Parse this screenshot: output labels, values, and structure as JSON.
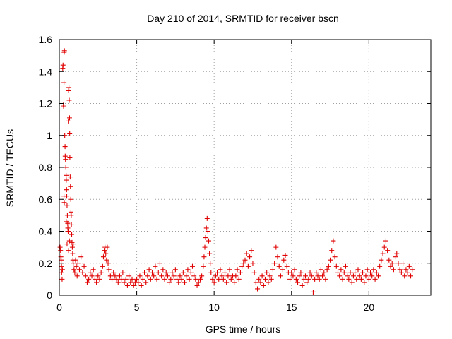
{
  "chart_data": {
    "type": "scatter",
    "title": "Day 210 of 2014, SRMTID for receiver bscn",
    "xlabel": "GPS time / hours",
    "ylabel": "SRMTID / TECUs",
    "xlim": [
      0,
      24
    ],
    "ylim": [
      0,
      1.6
    ],
    "x_ticks": [
      0,
      5,
      10,
      15,
      20
    ],
    "x_tick_labels": [
      "0",
      "5",
      "10",
      "15",
      "20"
    ],
    "y_ticks": [
      0,
      0.2,
      0.4,
      0.6,
      0.8,
      1.0,
      1.2,
      1.4,
      1.6
    ],
    "y_tick_labels": [
      "0",
      "0.2",
      "0.4",
      "0.6",
      "0.8",
      "1",
      "1.2",
      "1.4",
      "1.6"
    ],
    "grid": true,
    "marker": "+",
    "color": "#e00000",
    "series": [
      {
        "name": "SRMTID",
        "points": [
          [
            0.05,
            0.3
          ],
          [
            0.08,
            0.28
          ],
          [
            0.1,
            0.24
          ],
          [
            0.12,
            0.22
          ],
          [
            0.14,
            0.18
          ],
          [
            0.15,
            0.14
          ],
          [
            0.18,
            0.1
          ],
          [
            0.2,
            0.16
          ],
          [
            0.22,
            1.42
          ],
          [
            0.24,
            1.44
          ],
          [
            0.26,
            1.19
          ],
          [
            0.28,
            1.18
          ],
          [
            0.3,
            1.33
          ],
          [
            0.31,
            1.52
          ],
          [
            0.33,
            1.53
          ],
          [
            0.35,
            1.0
          ],
          [
            0.37,
            0.93
          ],
          [
            0.38,
            0.87
          ],
          [
            0.4,
            0.85
          ],
          [
            0.42,
            0.8
          ],
          [
            0.44,
            0.75
          ],
          [
            0.45,
            0.72
          ],
          [
            0.47,
            0.66
          ],
          [
            0.48,
            0.62
          ],
          [
            0.5,
            0.56
          ],
          [
            0.52,
            0.5
          ],
          [
            0.54,
            0.45
          ],
          [
            0.55,
            0.42
          ],
          [
            0.57,
            0.4
          ],
          [
            0.58,
            1.09
          ],
          [
            0.6,
            1.28
          ],
          [
            0.62,
            1.3
          ],
          [
            0.64,
            1.22
          ],
          [
            0.66,
            1.11
          ],
          [
            0.67,
            1.01
          ],
          [
            0.68,
            0.86
          ],
          [
            0.7,
            0.74
          ],
          [
            0.72,
            0.68
          ],
          [
            0.74,
            0.6
          ],
          [
            0.75,
            0.52
          ],
          [
            0.77,
            0.5
          ],
          [
            0.78,
            0.44
          ],
          [
            0.8,
            0.38
          ],
          [
            0.82,
            0.33
          ],
          [
            0.84,
            0.3
          ],
          [
            0.86,
            0.26
          ],
          [
            0.88,
            0.22
          ],
          [
            0.9,
            0.2
          ],
          [
            0.95,
            0.16
          ],
          [
            1.0,
            0.14
          ],
          [
            0.3,
            0.62
          ],
          [
            0.32,
            0.58
          ],
          [
            0.45,
            0.46
          ],
          [
            0.5,
            0.32
          ],
          [
            0.6,
            0.28
          ],
          [
            0.65,
            0.34
          ],
          [
            0.9,
            0.32
          ],
          [
            1.05,
            0.22
          ],
          [
            1.1,
            0.18
          ],
          [
            1.15,
            0.12
          ],
          [
            1.2,
            0.2
          ],
          [
            1.3,
            0.16
          ],
          [
            1.4,
            0.24
          ],
          [
            1.5,
            0.14
          ],
          [
            1.6,
            0.18
          ],
          [
            1.7,
            0.12
          ],
          [
            1.8,
            0.08
          ],
          [
            1.9,
            0.1
          ],
          [
            2.0,
            0.14
          ],
          [
            2.1,
            0.12
          ],
          [
            2.2,
            0.16
          ],
          [
            2.3,
            0.1
          ],
          [
            2.4,
            0.08
          ],
          [
            2.5,
            0.12
          ],
          [
            2.6,
            0.1
          ],
          [
            2.7,
            0.14
          ],
          [
            2.8,
            0.18
          ],
          [
            2.85,
            0.24
          ],
          [
            2.9,
            0.28
          ],
          [
            2.95,
            0.3
          ],
          [
            3.0,
            0.26
          ],
          [
            3.05,
            0.22
          ],
          [
            3.1,
            0.3
          ],
          [
            3.15,
            0.2
          ],
          [
            3.2,
            0.16
          ],
          [
            3.3,
            0.12
          ],
          [
            3.4,
            0.1
          ],
          [
            3.5,
            0.14
          ],
          [
            3.6,
            0.12
          ],
          [
            3.7,
            0.1
          ],
          [
            3.8,
            0.08
          ],
          [
            3.9,
            0.12
          ],
          [
            4.0,
            0.1
          ],
          [
            4.1,
            0.14
          ],
          [
            4.2,
            0.08
          ],
          [
            4.3,
            0.1
          ],
          [
            4.4,
            0.06
          ],
          [
            4.5,
            0.12
          ],
          [
            4.6,
            0.08
          ],
          [
            4.7,
            0.1
          ],
          [
            4.8,
            0.06
          ],
          [
            4.9,
            0.08
          ],
          [
            5.0,
            0.1
          ],
          [
            5.1,
            0.08
          ],
          [
            5.2,
            0.12
          ],
          [
            5.3,
            0.06
          ],
          [
            5.4,
            0.1
          ],
          [
            5.5,
            0.14
          ],
          [
            5.6,
            0.08
          ],
          [
            5.7,
            0.12
          ],
          [
            5.8,
            0.16
          ],
          [
            5.9,
            0.1
          ],
          [
            6.0,
            0.14
          ],
          [
            6.1,
            0.12
          ],
          [
            6.2,
            0.18
          ],
          [
            6.3,
            0.1
          ],
          [
            6.4,
            0.14
          ],
          [
            6.5,
            0.2
          ],
          [
            6.6,
            0.12
          ],
          [
            6.7,
            0.16
          ],
          [
            6.8,
            0.1
          ],
          [
            6.9,
            0.14
          ],
          [
            7.0,
            0.12
          ],
          [
            7.1,
            0.08
          ],
          [
            7.2,
            0.1
          ],
          [
            7.3,
            0.14
          ],
          [
            7.4,
            0.12
          ],
          [
            7.5,
            0.16
          ],
          [
            7.6,
            0.1
          ],
          [
            7.7,
            0.08
          ],
          [
            7.8,
            0.12
          ],
          [
            7.9,
            0.1
          ],
          [
            8.0,
            0.14
          ],
          [
            8.1,
            0.08
          ],
          [
            8.2,
            0.12
          ],
          [
            8.3,
            0.16
          ],
          [
            8.4,
            0.1
          ],
          [
            8.5,
            0.14
          ],
          [
            8.6,
            0.18
          ],
          [
            8.7,
            0.12
          ],
          [
            8.8,
            0.1
          ],
          [
            8.9,
            0.06
          ],
          [
            9.0,
            0.08
          ],
          [
            9.1,
            0.1
          ],
          [
            9.2,
            0.12
          ],
          [
            9.3,
            0.18
          ],
          [
            9.35,
            0.24
          ],
          [
            9.4,
            0.3
          ],
          [
            9.45,
            0.36
          ],
          [
            9.5,
            0.42
          ],
          [
            9.55,
            0.48
          ],
          [
            9.6,
            0.4
          ],
          [
            9.65,
            0.34
          ],
          [
            9.7,
            0.26
          ],
          [
            9.75,
            0.2
          ],
          [
            9.8,
            0.14
          ],
          [
            9.9,
            0.1
          ],
          [
            10.0,
            0.08
          ],
          [
            10.1,
            0.12
          ],
          [
            10.2,
            0.14
          ],
          [
            10.3,
            0.1
          ],
          [
            10.4,
            0.16
          ],
          [
            10.5,
            0.12
          ],
          [
            10.6,
            0.1
          ],
          [
            10.7,
            0.14
          ],
          [
            10.8,
            0.08
          ],
          [
            10.9,
            0.12
          ],
          [
            11.0,
            0.16
          ],
          [
            11.1,
            0.1
          ],
          [
            11.2,
            0.12
          ],
          [
            11.3,
            0.08
          ],
          [
            11.4,
            0.12
          ],
          [
            11.5,
            0.16
          ],
          [
            11.6,
            0.1
          ],
          [
            11.7,
            0.14
          ],
          [
            11.8,
            0.18
          ],
          [
            11.9,
            0.2
          ],
          [
            12.0,
            0.22
          ],
          [
            12.1,
            0.26
          ],
          [
            12.2,
            0.18
          ],
          [
            12.3,
            0.24
          ],
          [
            12.4,
            0.28
          ],
          [
            12.5,
            0.2
          ],
          [
            12.6,
            0.14
          ],
          [
            12.7,
            0.08
          ],
          [
            12.8,
            0.04
          ],
          [
            12.9,
            0.1
          ],
          [
            13.0,
            0.08
          ],
          [
            13.1,
            0.12
          ],
          [
            13.2,
            0.06
          ],
          [
            13.3,
            0.1
          ],
          [
            13.4,
            0.14
          ],
          [
            13.5,
            0.08
          ],
          [
            13.6,
            0.12
          ],
          [
            13.7,
            0.1
          ],
          [
            13.8,
            0.16
          ],
          [
            13.9,
            0.2
          ],
          [
            14.0,
            0.3
          ],
          [
            14.1,
            0.24
          ],
          [
            14.2,
            0.18
          ],
          [
            14.3,
            0.12
          ],
          [
            14.4,
            0.16
          ],
          [
            14.5,
            0.22
          ],
          [
            14.6,
            0.25
          ],
          [
            14.7,
            0.18
          ],
          [
            14.8,
            0.14
          ],
          [
            14.9,
            0.1
          ],
          [
            15.0,
            0.14
          ],
          [
            15.1,
            0.12
          ],
          [
            15.2,
            0.16
          ],
          [
            15.3,
            0.1
          ],
          [
            15.4,
            0.08
          ],
          [
            15.5,
            0.12
          ],
          [
            15.6,
            0.14
          ],
          [
            15.7,
            0.06
          ],
          [
            15.8,
            0.1
          ],
          [
            15.9,
            0.12
          ],
          [
            16.0,
            0.08
          ],
          [
            16.1,
            0.1
          ],
          [
            16.2,
            0.14
          ],
          [
            16.3,
            0.12
          ],
          [
            16.4,
            0.02
          ],
          [
            16.5,
            0.1
          ],
          [
            16.6,
            0.14
          ],
          [
            16.7,
            0.12
          ],
          [
            16.8,
            0.1
          ],
          [
            16.9,
            0.16
          ],
          [
            17.0,
            0.12
          ],
          [
            17.1,
            0.14
          ],
          [
            17.2,
            0.1
          ],
          [
            17.3,
            0.16
          ],
          [
            17.4,
            0.18
          ],
          [
            17.5,
            0.22
          ],
          [
            17.6,
            0.28
          ],
          [
            17.7,
            0.34
          ],
          [
            17.8,
            0.24
          ],
          [
            17.9,
            0.18
          ],
          [
            18.0,
            0.14
          ],
          [
            18.1,
            0.12
          ],
          [
            18.2,
            0.16
          ],
          [
            18.3,
            0.1
          ],
          [
            18.4,
            0.14
          ],
          [
            18.5,
            0.18
          ],
          [
            18.6,
            0.12
          ],
          [
            18.7,
            0.1
          ],
          [
            18.8,
            0.14
          ],
          [
            18.9,
            0.08
          ],
          [
            19.0,
            0.12
          ],
          [
            19.1,
            0.14
          ],
          [
            19.2,
            0.1
          ],
          [
            19.3,
            0.16
          ],
          [
            19.4,
            0.12
          ],
          [
            19.5,
            0.1
          ],
          [
            19.6,
            0.14
          ],
          [
            19.7,
            0.08
          ],
          [
            19.8,
            0.12
          ],
          [
            19.9,
            0.16
          ],
          [
            20.0,
            0.1
          ],
          [
            20.1,
            0.14
          ],
          [
            20.2,
            0.12
          ],
          [
            20.3,
            0.16
          ],
          [
            20.4,
            0.1
          ],
          [
            20.5,
            0.14
          ],
          [
            20.6,
            0.12
          ],
          [
            20.7,
            0.18
          ],
          [
            20.8,
            0.22
          ],
          [
            20.9,
            0.26
          ],
          [
            21.0,
            0.3
          ],
          [
            21.1,
            0.34
          ],
          [
            21.2,
            0.28
          ],
          [
            21.3,
            0.22
          ],
          [
            21.4,
            0.18
          ],
          [
            21.5,
            0.2
          ],
          [
            21.6,
            0.16
          ],
          [
            21.7,
            0.24
          ],
          [
            21.8,
            0.26
          ],
          [
            21.9,
            0.2
          ],
          [
            22.0,
            0.16
          ],
          [
            22.1,
            0.14
          ],
          [
            22.2,
            0.2
          ],
          [
            22.3,
            0.12
          ],
          [
            22.4,
            0.16
          ],
          [
            22.5,
            0.14
          ],
          [
            22.6,
            0.18
          ],
          [
            22.7,
            0.12
          ],
          [
            22.8,
            0.16
          ]
        ]
      }
    ]
  }
}
